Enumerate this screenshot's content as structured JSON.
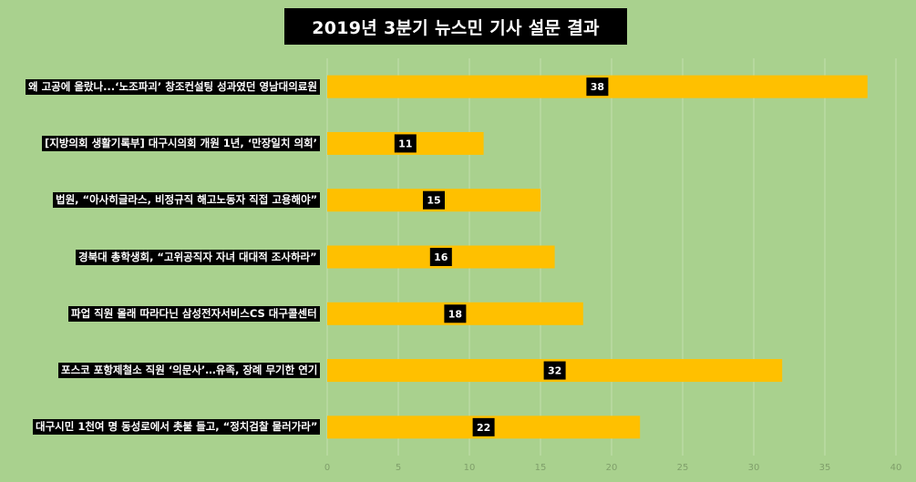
{
  "chart_data": {
    "type": "bar",
    "orientation": "horizontal",
    "title": "2019년 3분기 뉴스민 기사 설문 결과",
    "categories": [
      "왜 고공에 올랐나...‘노조파괴’ 창조컨설팅 성과였던 영남대의료원",
      "[지방의회 생활기록부] 대구시의회 개원 1년, ‘만장일치 의회’",
      "법원, “아사히글라스, 비정규직 해고노동자 직접 고용해야”",
      "경북대 총학생회, “고위공직자 자녀 대대적 조사하라”",
      "파업 직원 몰래 따라다닌 삼성전자서비스CS 대구콜센터",
      "포스코 포항제철소 직원 ‘의문사’…유족, 장례 무기한 연기",
      "대구시민 1천여 명 동성로에서 촛불 들고, “정치검찰 물러가라”"
    ],
    "values": [
      38,
      11,
      15,
      16,
      18,
      32,
      22
    ],
    "xlim": [
      0,
      40
    ],
    "xticks": [
      0,
      5,
      10,
      15,
      20,
      25,
      30,
      35,
      40
    ],
    "grid": true,
    "legend": "none",
    "colors": {
      "background": "#a9d18e",
      "bar": "#ffc000",
      "label_box": "#000000",
      "label_text": "#ffffff",
      "gridline": "#c3dfae",
      "tick_text": "#7f9f6a"
    }
  }
}
